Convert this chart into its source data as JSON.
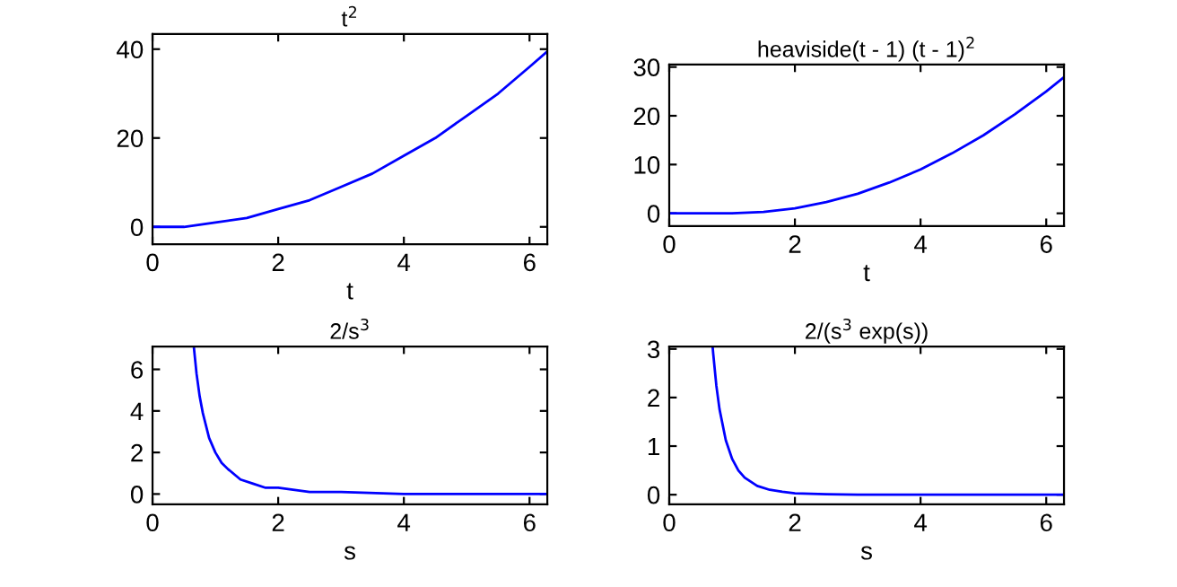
{
  "chart_data": [
    {
      "type": "line",
      "title": "t$^{2}$",
      "xlabel": "t",
      "xlim": [
        0,
        6.283
      ],
      "ylim": [
        -3.9,
        43.4
      ],
      "xticks": [
        0,
        2,
        4,
        6
      ],
      "yticks": [
        0,
        20,
        40
      ],
      "grid": false,
      "series": [
        {
          "color": "#0000ff",
          "x": [
            0,
            0.5,
            1,
            1.5,
            2,
            2.5,
            3,
            3.5,
            4,
            4.5,
            5,
            5.5,
            6,
            6.283
          ],
          "values": [
            0,
            0,
            1,
            2,
            4,
            6,
            9,
            12,
            16,
            20,
            25,
            30,
            36,
            39.5
          ]
        }
      ]
    },
    {
      "type": "line",
      "title": "heaviside(t - 1) (t - 1)$^{2}$",
      "xlabel": "t",
      "xlim": [
        0,
        6.283
      ],
      "ylim": [
        -2.6,
        30.5
      ],
      "xticks": [
        0,
        2,
        4,
        6
      ],
      "yticks": [
        0,
        10,
        20,
        30
      ],
      "grid": false,
      "series": [
        {
          "color": "#0000ff",
          "x": [
            0,
            1,
            1.5,
            2,
            2.5,
            3,
            3.5,
            4,
            4.5,
            5,
            5.5,
            6,
            6.283
          ],
          "values": [
            0,
            0,
            0.3,
            1,
            2.3,
            4,
            6.3,
            9,
            12.3,
            16,
            20.3,
            25,
            27.9
          ]
        }
      ]
    },
    {
      "type": "line",
      "title": "2/s$^{3}$",
      "xlabel": "s",
      "xlim": [
        0,
        6.283
      ],
      "ylim": [
        -0.5,
        7.1
      ],
      "xticks": [
        0,
        2,
        4,
        6
      ],
      "yticks": [
        0,
        2,
        4,
        6
      ],
      "grid": false,
      "series": [
        {
          "color": "#0000ff",
          "x": [
            0.66,
            0.7,
            0.75,
            0.8,
            0.9,
            1,
            1.1,
            1.2,
            1.4,
            1.6,
            1.8,
            2,
            2.5,
            3,
            4,
            5,
            6.283
          ],
          "values": [
            7,
            5.8,
            4.7,
            3.9,
            2.7,
            2,
            1.5,
            1.2,
            0.7,
            0.5,
            0.3,
            0.3,
            0.1,
            0.1,
            0,
            0,
            0
          ]
        }
      ]
    },
    {
      "type": "line",
      "title": "2/(s$^{3}$ exp(s))",
      "xlabel": "s",
      "xlim": [
        0,
        6.283
      ],
      "ylim": [
        -0.2,
        3.05
      ],
      "xticks": [
        0,
        2,
        4,
        6
      ],
      "yticks": [
        0,
        1,
        2,
        3
      ],
      "grid": false,
      "series": [
        {
          "color": "#0000ff",
          "x": [
            0.69,
            0.7,
            0.75,
            0.8,
            0.9,
            1,
            1.1,
            1.2,
            1.4,
            1.6,
            1.8,
            2,
            2.5,
            3,
            4,
            6.283
          ],
          "values": [
            3.05,
            2.9,
            2.24,
            1.76,
            1.12,
            0.74,
            0.5,
            0.35,
            0.18,
            0.1,
            0.06,
            0.03,
            0.01,
            0,
            0,
            0
          ]
        }
      ]
    }
  ]
}
